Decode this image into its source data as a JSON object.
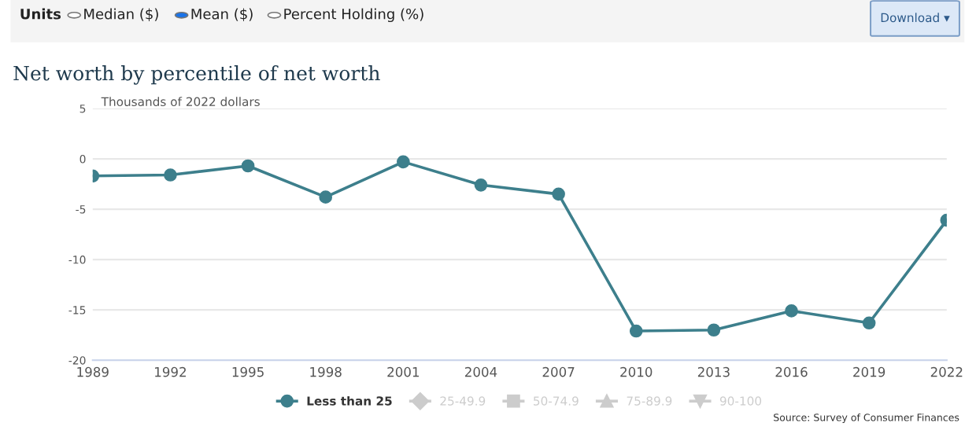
{
  "chart_data": {
    "type": "line",
    "title": "Net worth by percentile of net worth",
    "ylabel": "Thousands of 2022 dollars",
    "categories": [
      "1989",
      "1992",
      "1995",
      "1998",
      "2001",
      "2004",
      "2007",
      "2010",
      "2013",
      "2016",
      "2019",
      "2022"
    ],
    "series": [
      {
        "name": "Less than 25",
        "color": "#3d7f8c",
        "marker": "circle",
        "values": [
          -1.7,
          -1.6,
          -0.7,
          -3.8,
          -0.3,
          -2.6,
          -3.5,
          -17.1,
          -17.0,
          -15.1,
          -16.3,
          -6.1
        ]
      },
      {
        "name": "25-49.9",
        "color": "#cccccc",
        "marker": "diamond",
        "values": [
          null,
          null,
          null,
          null,
          null,
          null,
          null,
          null,
          null,
          null,
          null,
          null
        ]
      },
      {
        "name": "50-74.9",
        "color": "#cccccc",
        "marker": "square",
        "values": [
          null,
          null,
          null,
          null,
          null,
          null,
          null,
          null,
          null,
          null,
          null,
          null
        ]
      },
      {
        "name": "75-89.9",
        "color": "#cccccc",
        "marker": "triangle",
        "values": [
          null,
          null,
          null,
          null,
          null,
          null,
          null,
          null,
          null,
          null,
          null,
          null
        ]
      },
      {
        "name": "90-100",
        "color": "#cccccc",
        "marker": "triangle_down",
        "values": [
          null,
          null,
          null,
          null,
          null,
          null,
          null,
          null,
          null,
          null,
          null,
          null
        ]
      }
    ],
    "ylim": [
      -20,
      5
    ],
    "yticks": [
      5,
      0,
      -5,
      -10,
      -15,
      -20
    ],
    "grid": "y",
    "legend": "bottom",
    "annotations": [
      "Source: Survey of Consumer Finances",
      "Units",
      "Median ($)",
      "Mean ($)",
      "Percent Holding (%)",
      "Download ▾"
    ]
  }
}
